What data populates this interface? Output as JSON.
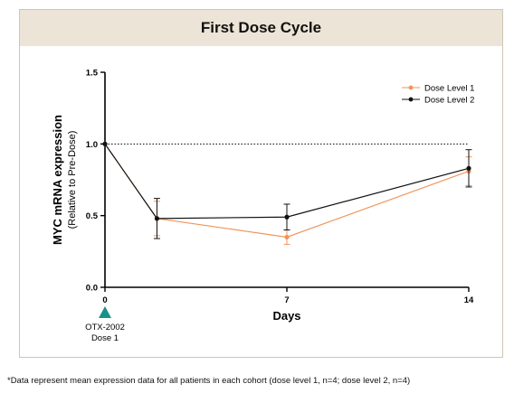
{
  "chart_data": {
    "type": "line",
    "title": "First Dose Cycle",
    "xlabel": "Days",
    "ylabel": "MYC mRNA expression",
    "ylabel_sub": "(Relative to Pre-Dose)",
    "x_ticks": [
      0,
      7,
      14
    ],
    "y_ticks": [
      "0.0",
      "0.5",
      "1.0",
      "1.5"
    ],
    "xlim": [
      0,
      14
    ],
    "ylim": [
      0,
      1.5
    ],
    "reference_line": 1.0,
    "legend_position": "top-right",
    "series": [
      {
        "name": "Dose Level 1",
        "color": "#f0955a",
        "x": [
          0,
          2,
          7,
          14
        ],
        "y": [
          1.0,
          0.48,
          0.35,
          0.81
        ],
        "err": [
          0,
          0.12,
          0.05,
          0.1
        ]
      },
      {
        "name": "Dose Level 2",
        "color": "#111111",
        "x": [
          0,
          2,
          7,
          14
        ],
        "y": [
          1.0,
          0.48,
          0.49,
          0.83
        ],
        "err": [
          0,
          0.14,
          0.09,
          0.13
        ]
      }
    ],
    "annotation": {
      "marker_color": "#17928a",
      "line1": "OTX-2002",
      "line2": "Dose 1"
    }
  },
  "footnote": "*Data represent mean expression data for all patients in each cohort (dose level 1, n=4; dose level 2, n=4)"
}
